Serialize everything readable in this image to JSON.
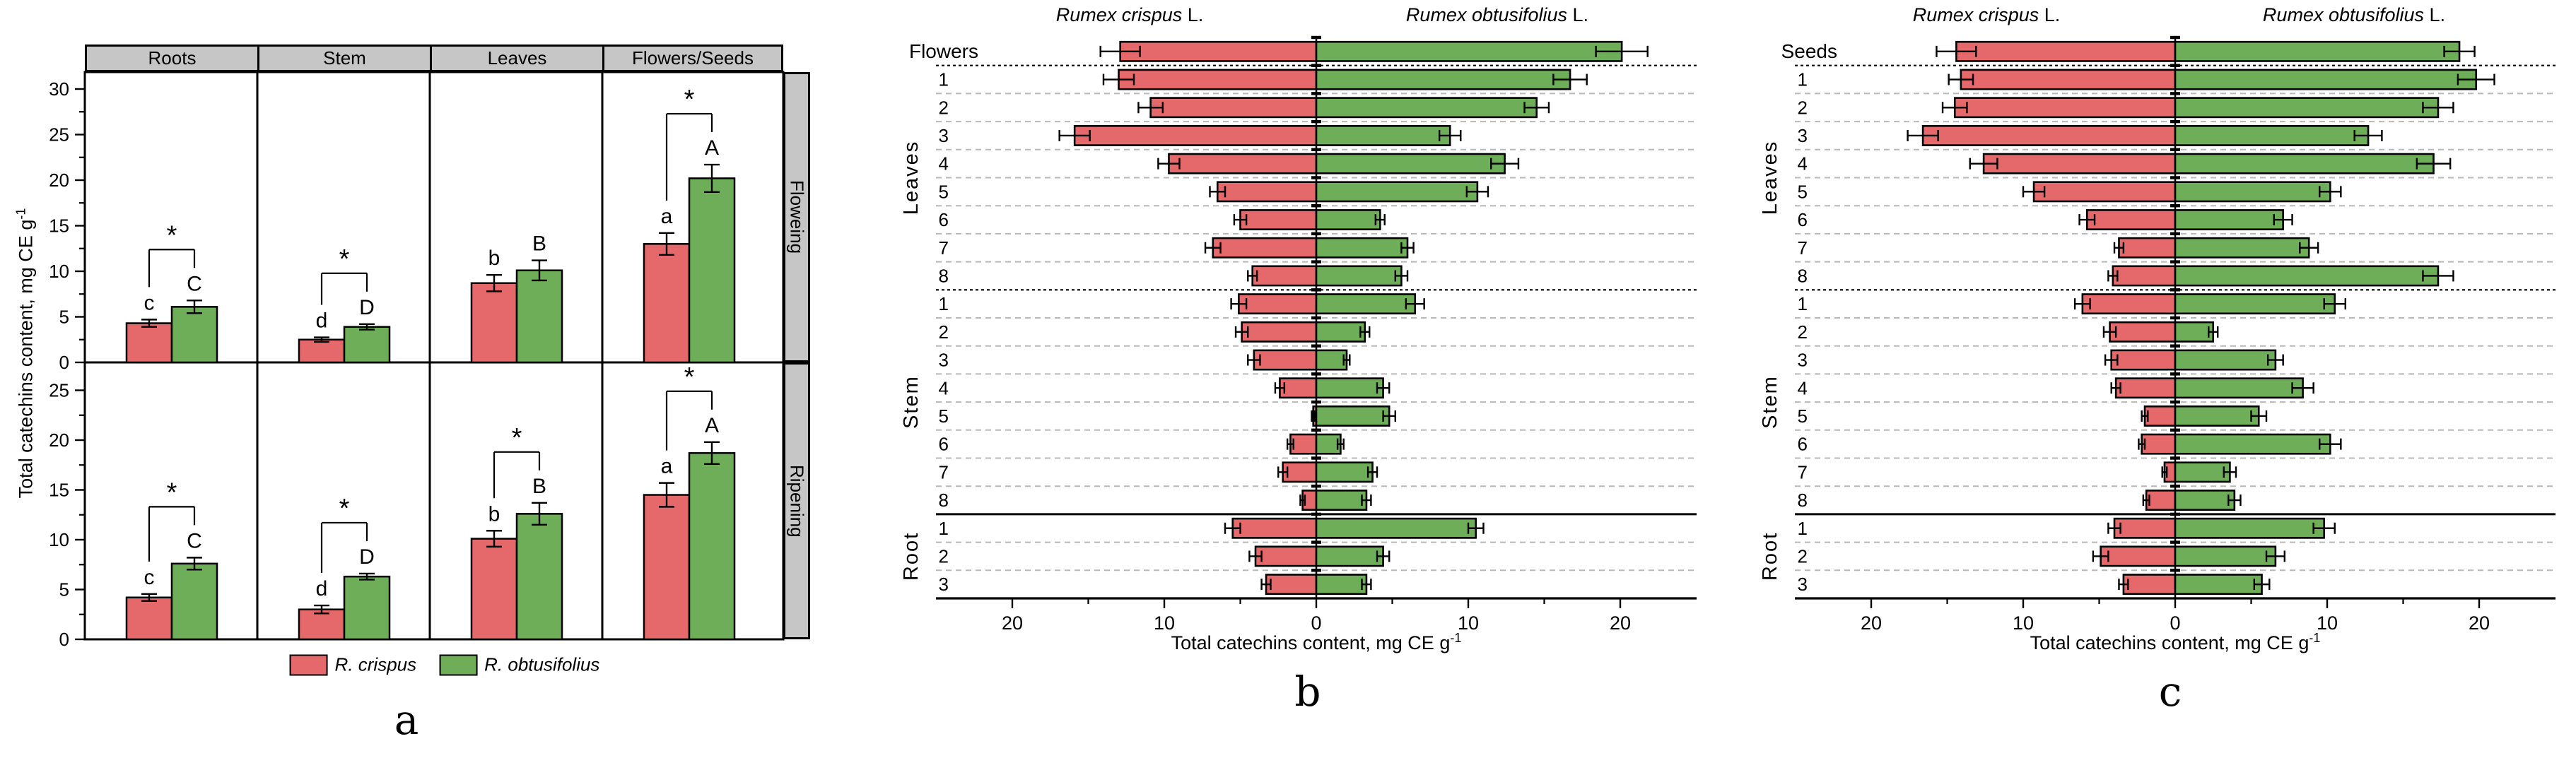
{
  "colors": {
    "crispus": "#E5696B",
    "obtusifolius": "#6FAE59",
    "strip_gray": "#C6C6C6",
    "grid_gray": "#B8B8B8",
    "black": "#000000"
  },
  "chart_data": [
    {
      "panel": "a",
      "type": "bar",
      "panel_letter": "a",
      "ylabel_main": "Total catechins content, mg CE g",
      "ylabel_sup": "-1",
      "facet_cols": [
        "Roots",
        "Stem",
        "Leaves",
        "Flowers/Seeds"
      ],
      "facet_rows": [
        "Floweing",
        "Ripening"
      ],
      "series": [
        {
          "name": "R. crispus",
          "color": "#E5696B"
        },
        {
          "name": "R. obtusifolius",
          "color": "#6FAE59"
        }
      ],
      "y_ticks_top": [
        0,
        5,
        10,
        15,
        20,
        25,
        30
      ],
      "y_ticks_bottom": [
        0,
        5,
        10,
        15,
        20,
        25
      ],
      "ylim_top": [
        0,
        31.8
      ],
      "ylim_bottom": [
        0,
        27.8
      ],
      "grid": false,
      "legend_position": "bottom",
      "cells": [
        {
          "facet_row": "Floweing",
          "facet_col": "Roots",
          "crispus": 4.3,
          "crispus_err": 0.4,
          "crispus_letter": "c",
          "obtus": 6.1,
          "obtus_err": 0.7,
          "obtus_letter": "C",
          "sig": "*"
        },
        {
          "facet_row": "Floweing",
          "facet_col": "Stem",
          "crispus": 2.5,
          "crispus_err": 0.25,
          "crispus_letter": "d",
          "obtus": 3.9,
          "obtus_err": 0.3,
          "obtus_letter": "D",
          "sig": "*"
        },
        {
          "facet_row": "Floweing",
          "facet_col": "Leaves",
          "crispus": 8.7,
          "crispus_err": 0.9,
          "crispus_letter": "b",
          "obtus": 10.1,
          "obtus_err": 1.1,
          "obtus_letter": "B",
          "sig": null
        },
        {
          "facet_row": "Floweing",
          "facet_col": "Flowers/Seeds",
          "crispus": 13.0,
          "crispus_err": 1.2,
          "crispus_letter": "a",
          "obtus": 20.2,
          "obtus_err": 1.5,
          "obtus_letter": "A",
          "sig": "*"
        },
        {
          "facet_row": "Ripening",
          "facet_col": "Roots",
          "crispus": 4.2,
          "crispus_err": 0.35,
          "crispus_letter": "c",
          "obtus": 7.6,
          "obtus_err": 0.6,
          "obtus_letter": "C",
          "sig": "*"
        },
        {
          "facet_row": "Ripening",
          "facet_col": "Stem",
          "crispus": 3.0,
          "crispus_err": 0.4,
          "crispus_letter": "d",
          "obtus": 6.3,
          "obtus_err": 0.3,
          "obtus_letter": "D",
          "sig": "*"
        },
        {
          "facet_row": "Ripening",
          "facet_col": "Leaves",
          "crispus": 10.1,
          "crispus_err": 0.8,
          "crispus_letter": "b",
          "obtus": 12.6,
          "obtus_err": 1.1,
          "obtus_letter": "B",
          "sig": "*"
        },
        {
          "facet_row": "Ripening",
          "facet_col": "Flowers/Seeds",
          "crispus": 14.5,
          "crispus_err": 1.2,
          "crispus_letter": "a",
          "obtus": 18.7,
          "obtus_err": 1.1,
          "obtus_letter": "A",
          "sig": "*"
        }
      ]
    },
    {
      "panel": "b",
      "type": "diverging-bar",
      "panel_letter": "b",
      "left_header_italic": "Rumex crispus",
      "left_header_rest": " L.",
      "right_header_italic": "Rumex obtusifolius",
      "right_header_rest": " L.",
      "xlabel_main": "Total catechins content, mg CE g",
      "xlabel_sup": "-1",
      "x_tick_labels": [
        "20",
        "10",
        "0",
        "10",
        "20"
      ],
      "x_tick_values": [
        -20,
        -10,
        0,
        10,
        20
      ],
      "x_minor_ticks": [
        -15,
        -5,
        5,
        15
      ],
      "xlim": [
        -25,
        25
      ],
      "series_left": "R. crispus",
      "series_right": "R. obtusifolius",
      "groups": [
        {
          "name": "",
          "rows": [
            {
              "label": "Flowers",
              "crispus": 12.9,
              "crispus_err": 1.3,
              "obtus": 20.1,
              "obtus_err": 1.7
            }
          ]
        },
        {
          "name": "Leaves",
          "rows": [
            {
              "label": "1",
              "crispus": 13.0,
              "crispus_err": 1.0,
              "obtus": 16.7,
              "obtus_err": 1.1
            },
            {
              "label": "2",
              "crispus": 10.9,
              "crispus_err": 0.8,
              "obtus": 14.5,
              "obtus_err": 0.8
            },
            {
              "label": "3",
              "crispus": 15.9,
              "crispus_err": 1.0,
              "obtus": 8.8,
              "obtus_err": 0.7
            },
            {
              "label": "4",
              "crispus": 9.7,
              "crispus_err": 0.7,
              "obtus": 12.4,
              "obtus_err": 0.9
            },
            {
              "label": "5",
              "crispus": 6.5,
              "crispus_err": 0.5,
              "obtus": 10.6,
              "obtus_err": 0.7
            },
            {
              "label": "6",
              "crispus": 5.0,
              "crispus_err": 0.4,
              "obtus": 4.2,
              "obtus_err": 0.3
            },
            {
              "label": "7",
              "crispus": 6.8,
              "crispus_err": 0.5,
              "obtus": 6.0,
              "obtus_err": 0.4
            },
            {
              "label": "8",
              "crispus": 4.2,
              "crispus_err": 0.3,
              "obtus": 5.6,
              "obtus_err": 0.4
            }
          ]
        },
        {
          "name": "Stem",
          "rows": [
            {
              "label": "1",
              "crispus": 5.1,
              "crispus_err": 0.5,
              "obtus": 6.5,
              "obtus_err": 0.6
            },
            {
              "label": "2",
              "crispus": 4.9,
              "crispus_err": 0.4,
              "obtus": 3.2,
              "obtus_err": 0.3
            },
            {
              "label": "3",
              "crispus": 4.1,
              "crispus_err": 0.4,
              "obtus": 2.0,
              "obtus_err": 0.2
            },
            {
              "label": "4",
              "crispus": 2.4,
              "crispus_err": 0.3,
              "obtus": 4.4,
              "obtus_err": 0.4
            },
            {
              "label": "5",
              "crispus": 0.2,
              "crispus_err": 0.1,
              "obtus": 4.8,
              "obtus_err": 0.4
            },
            {
              "label": "6",
              "crispus": 1.7,
              "crispus_err": 0.2,
              "obtus": 1.6,
              "obtus_err": 0.2
            },
            {
              "label": "7",
              "crispus": 2.2,
              "crispus_err": 0.3,
              "obtus": 3.7,
              "obtus_err": 0.3
            },
            {
              "label": "8",
              "crispus": 0.9,
              "crispus_err": 0.15,
              "obtus": 3.3,
              "obtus_err": 0.3
            }
          ]
        },
        {
          "name": "Root",
          "rows": [
            {
              "label": "1",
              "crispus": 5.5,
              "crispus_err": 0.5,
              "obtus": 10.5,
              "obtus_err": 0.5
            },
            {
              "label": "2",
              "crispus": 4.0,
              "crispus_err": 0.4,
              "obtus": 4.4,
              "obtus_err": 0.4
            },
            {
              "label": "3",
              "crispus": 3.3,
              "crispus_err": 0.3,
              "obtus": 3.3,
              "obtus_err": 0.3
            }
          ]
        }
      ]
    },
    {
      "panel": "c",
      "type": "diverging-bar",
      "panel_letter": "c",
      "left_header_italic": "Rumex crispus",
      "left_header_rest": " L.",
      "right_header_italic": "Rumex obtusifolius",
      "right_header_rest": " L.",
      "xlabel_main": "Total catechins content, mg CE g",
      "xlabel_sup": "-1",
      "x_tick_labels": [
        "20",
        "10",
        "0",
        "10",
        "20"
      ],
      "x_tick_values": [
        -20,
        -10,
        0,
        10,
        20
      ],
      "x_minor_ticks": [
        -15,
        -5,
        5,
        15
      ],
      "xlim": [
        -25,
        25
      ],
      "series_left": "R. crispus",
      "series_right": "R. obtusifolius",
      "groups": [
        {
          "name": "",
          "rows": [
            {
              "label": "Seeds",
              "crispus": 14.4,
              "crispus_err": 1.3,
              "obtus": 18.7,
              "obtus_err": 1.0
            }
          ]
        },
        {
          "name": "Leaves",
          "rows": [
            {
              "label": "1",
              "crispus": 14.1,
              "crispus_err": 0.8,
              "obtus": 19.8,
              "obtus_err": 1.2
            },
            {
              "label": "2",
              "crispus": 14.5,
              "crispus_err": 0.8,
              "obtus": 17.3,
              "obtus_err": 1.0
            },
            {
              "label": "3",
              "crispus": 16.6,
              "crispus_err": 1.0,
              "obtus": 12.7,
              "obtus_err": 0.9
            },
            {
              "label": "4",
              "crispus": 12.6,
              "crispus_err": 0.9,
              "obtus": 17.0,
              "obtus_err": 1.1
            },
            {
              "label": "5",
              "crispus": 9.3,
              "crispus_err": 0.7,
              "obtus": 10.2,
              "obtus_err": 0.7
            },
            {
              "label": "6",
              "crispus": 5.8,
              "crispus_err": 0.5,
              "obtus": 7.1,
              "obtus_err": 0.6
            },
            {
              "label": "7",
              "crispus": 3.7,
              "crispus_err": 0.3,
              "obtus": 8.8,
              "obtus_err": 0.6
            },
            {
              "label": "8",
              "crispus": 4.1,
              "crispus_err": 0.3,
              "obtus": 17.3,
              "obtus_err": 1.0
            }
          ]
        },
        {
          "name": "Stem",
          "rows": [
            {
              "label": "1",
              "crispus": 6.1,
              "crispus_err": 0.5,
              "obtus": 10.5,
              "obtus_err": 0.7
            },
            {
              "label": "2",
              "crispus": 4.3,
              "crispus_err": 0.4,
              "obtus": 2.5,
              "obtus_err": 0.3
            },
            {
              "label": "3",
              "crispus": 4.2,
              "crispus_err": 0.4,
              "obtus": 6.6,
              "obtus_err": 0.5
            },
            {
              "label": "4",
              "crispus": 3.9,
              "crispus_err": 0.3,
              "obtus": 8.4,
              "obtus_err": 0.7
            },
            {
              "label": "5",
              "crispus": 2.0,
              "crispus_err": 0.2,
              "obtus": 5.5,
              "obtus_err": 0.5
            },
            {
              "label": "6",
              "crispus": 2.2,
              "crispus_err": 0.2,
              "obtus": 10.2,
              "obtus_err": 0.7
            },
            {
              "label": "7",
              "crispus": 0.7,
              "crispus_err": 0.15,
              "obtus": 3.6,
              "obtus_err": 0.4
            },
            {
              "label": "8",
              "crispus": 1.9,
              "crispus_err": 0.2,
              "obtus": 3.9,
              "obtus_err": 0.4
            }
          ]
        },
        {
          "name": "Root",
          "rows": [
            {
              "label": "1",
              "crispus": 4.0,
              "crispus_err": 0.4,
              "obtus": 9.8,
              "obtus_err": 0.7
            },
            {
              "label": "2",
              "crispus": 4.9,
              "crispus_err": 0.5,
              "obtus": 6.6,
              "obtus_err": 0.6
            },
            {
              "label": "3",
              "crispus": 3.4,
              "crispus_err": 0.3,
              "obtus": 5.7,
              "obtus_err": 0.5
            }
          ]
        }
      ]
    }
  ]
}
